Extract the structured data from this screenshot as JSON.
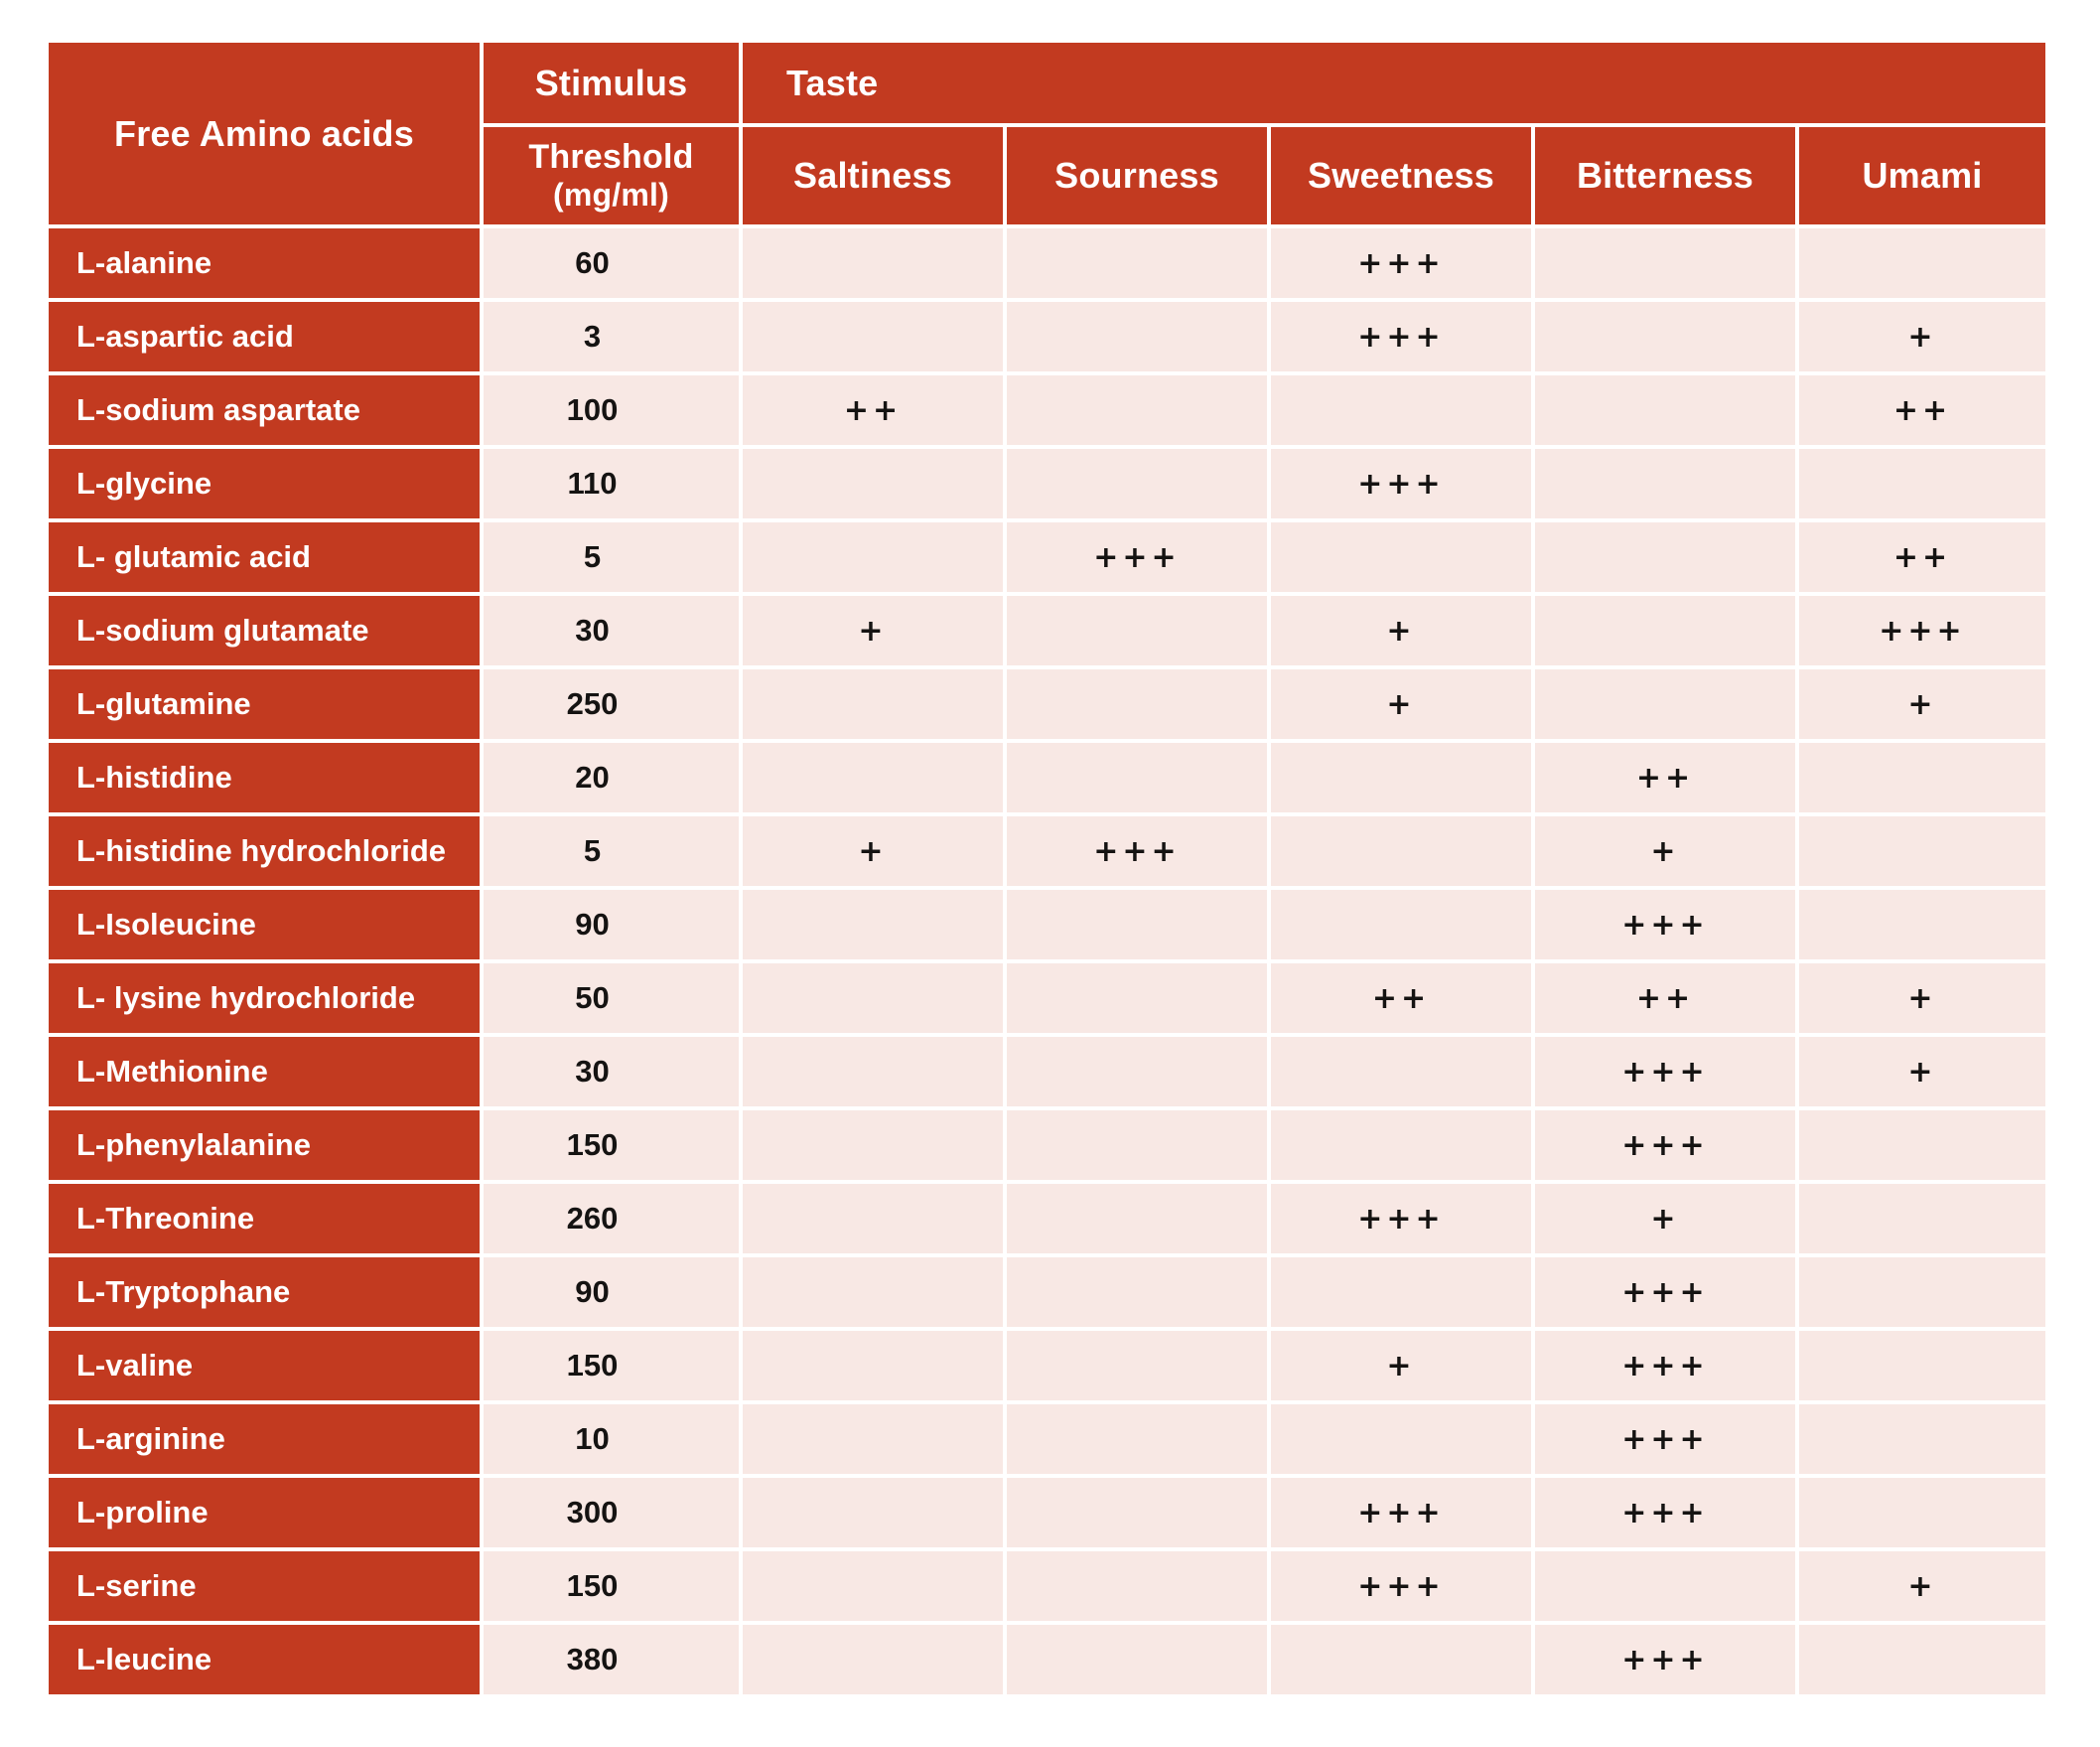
{
  "table": {
    "header": {
      "free_amino_acids": "Free Amino acids",
      "stimulus": "Stimulus",
      "threshold_line1": "Threshold",
      "threshold_line2": "(mg/ml)",
      "taste": "Taste",
      "taste_columns": [
        "Saltiness",
        "Sourness",
        "Sweetness",
        "Bitterness",
        "Umami"
      ]
    }
  },
  "colors": {
    "header_red": "#c23a20",
    "cell_pink": "#f8e8e4",
    "gap_white": "#ffffff",
    "text_dark": "#151312",
    "text_white": "#ffffff"
  },
  "chart_data": {
    "type": "table",
    "title": "Taste characteristics and stimulus thresholds of free amino acids",
    "columns": [
      "Free Amino acids",
      "Stimulus Threshold (mg/ml)",
      "Saltiness",
      "Sourness",
      "Sweetness",
      "Bitterness",
      "Umami"
    ],
    "rows": [
      {
        "name": "L-alanine",
        "threshold": "60",
        "saltiness": "",
        "sourness": "",
        "sweetness": "+++",
        "bitterness": "",
        "umami": ""
      },
      {
        "name": "L-aspartic acid",
        "threshold": "3",
        "saltiness": "",
        "sourness": "",
        "sweetness": "+++",
        "bitterness": "",
        "umami": "+"
      },
      {
        "name": "L-sodium aspartate",
        "threshold": "100",
        "saltiness": "++",
        "sourness": "",
        "sweetness": "",
        "bitterness": "",
        "umami": "++"
      },
      {
        "name": "L-glycine",
        "threshold": "110",
        "saltiness": "",
        "sourness": "",
        "sweetness": "+++",
        "bitterness": "",
        "umami": ""
      },
      {
        "name": "L- glutamic acid",
        "threshold": "5",
        "saltiness": "",
        "sourness": "+++",
        "sweetness": "",
        "bitterness": "",
        "umami": "++"
      },
      {
        "name": "L-sodium glutamate",
        "threshold": "30",
        "saltiness": "+",
        "sourness": "",
        "sweetness": "+",
        "bitterness": "",
        "umami": "+++"
      },
      {
        "name": "L-glutamine",
        "threshold": "250",
        "saltiness": "",
        "sourness": "",
        "sweetness": "+",
        "bitterness": "",
        "umami": "+"
      },
      {
        "name": "L-histidine",
        "threshold": "20",
        "saltiness": "",
        "sourness": "",
        "sweetness": "",
        "bitterness": "++",
        "umami": ""
      },
      {
        "name": "L-histidine hydrochloride",
        "threshold": "5",
        "saltiness": "+",
        "sourness": "+++",
        "sweetness": "",
        "bitterness": "+",
        "umami": ""
      },
      {
        "name": "L-Isoleucine",
        "threshold": "90",
        "saltiness": "",
        "sourness": "",
        "sweetness": "",
        "bitterness": "+++",
        "umami": ""
      },
      {
        "name": "L- lysine hydrochloride",
        "threshold": "50",
        "saltiness": "",
        "sourness": "",
        "sweetness": "++",
        "bitterness": "++",
        "umami": "+"
      },
      {
        "name": "L-Methionine",
        "threshold": "30",
        "saltiness": "",
        "sourness": "",
        "sweetness": "",
        "bitterness": "+++",
        "umami": "+"
      },
      {
        "name": "L-phenylalanine",
        "threshold": "150",
        "saltiness": "",
        "sourness": "",
        "sweetness": "",
        "bitterness": "+++",
        "umami": ""
      },
      {
        "name": "L-Threonine",
        "threshold": "260",
        "saltiness": "",
        "sourness": "",
        "sweetness": "+++",
        "bitterness": "+",
        "umami": ""
      },
      {
        "name": "L-Tryptophane",
        "threshold": "90",
        "saltiness": "",
        "sourness": "",
        "sweetness": "",
        "bitterness": "+++",
        "umami": ""
      },
      {
        "name": "L-valine",
        "threshold": "150",
        "saltiness": "",
        "sourness": "",
        "sweetness": "+",
        "bitterness": "+++",
        "umami": ""
      },
      {
        "name": "L-arginine",
        "threshold": "10",
        "saltiness": "",
        "sourness": "",
        "sweetness": "",
        "bitterness": "+++",
        "umami": ""
      },
      {
        "name": "L-proline",
        "threshold": "300",
        "saltiness": "",
        "sourness": "",
        "sweetness": "+++",
        "bitterness": "+++",
        "umami": ""
      },
      {
        "name": "L-serine",
        "threshold": "150",
        "saltiness": "",
        "sourness": "",
        "sweetness": "+++",
        "bitterness": "",
        "umami": "+"
      },
      {
        "name": "L-leucine",
        "threshold": "380",
        "saltiness": "",
        "sourness": "",
        "sweetness": "",
        "bitterness": "+++",
        "umami": ""
      }
    ]
  }
}
